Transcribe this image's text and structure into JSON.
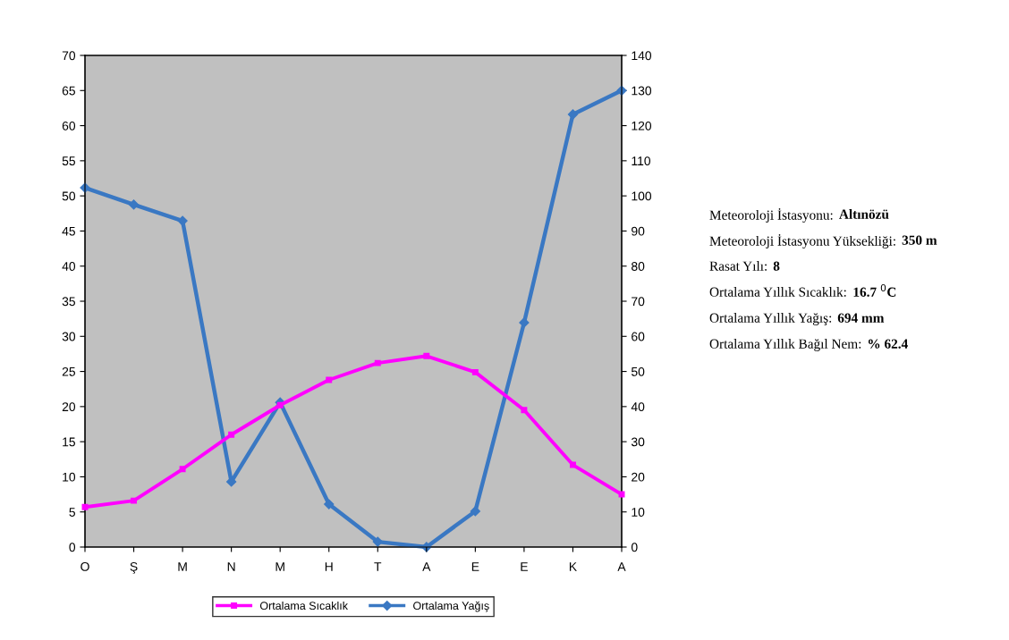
{
  "chart_data": {
    "type": "line",
    "categories": [
      "O",
      "Ş",
      "M",
      "N",
      "M",
      "H",
      "T",
      "A",
      "E",
      "E",
      "K",
      "A"
    ],
    "series": [
      {
        "name": "Ortalama Sıcaklık",
        "color": "#ff00ff",
        "marker": "square",
        "values": [
          5.7,
          6.6,
          11.1,
          16.0,
          20.2,
          23.8,
          26.2,
          27.2,
          24.9,
          19.5,
          11.7,
          7.5
        ]
      },
      {
        "name": "Ortalama Yağış",
        "color": "#3a78c3",
        "marker": "diamond",
        "axis": "y2",
        "values": [
          102.3,
          97.5,
          92.9,
          18.6,
          41.2,
          12.2,
          1.5,
          0,
          10.2,
          63.9,
          123.2,
          130
        ]
      }
    ],
    "ylim": [
      0,
      70
    ],
    "yticks": [
      0,
      5,
      10,
      15,
      20,
      25,
      30,
      35,
      40,
      45,
      50,
      55,
      60,
      65,
      70
    ],
    "y2lim": [
      0,
      140
    ],
    "y2ticks": [
      0,
      10,
      20,
      30,
      40,
      50,
      60,
      70,
      80,
      90,
      100,
      110,
      120,
      130,
      140
    ],
    "grid": false,
    "legend": "bottom",
    "line_style": "solid",
    "annotations": [
      "Meteoroloji İstasyonu: Altınözü",
      "Meteoroloji İstasyonu Yüksekliği: 350 m",
      "Rasat Yılı: 8",
      "Ortalama Yıllık Sıcaklık: 16.7 $^{0}$C",
      "Ortalama Yıllık Yağış: 694 mm",
      "Ortalama Yıllık Bağıl Nem: % 62.4"
    ]
  }
}
